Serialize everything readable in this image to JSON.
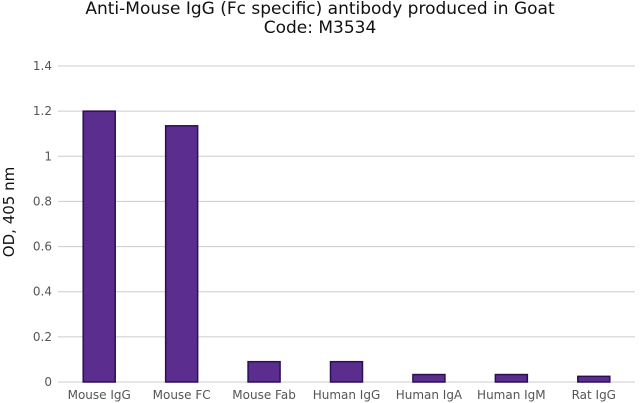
{
  "chart_data": {
    "type": "bar",
    "title": "Anti-Mouse IgG (Fc specific) antibody produced in Goat",
    "subtitle": "Code: M3534",
    "xlabel": "",
    "ylabel": "OD, 405 nm",
    "categories": [
      "Mouse IgG",
      "Mouse FC",
      "Mouse Fab",
      "Human IgG",
      "Human IgA",
      "Human IgM",
      "Rat IgG"
    ],
    "values": [
      1.2,
      1.135,
      0.09,
      0.09,
      0.033,
      0.033,
      0.025
    ],
    "ylim": [
      0,
      1.4
    ],
    "yticks": [
      "0",
      "0.2",
      "0.4",
      "0.6",
      "0.8",
      "1",
      "1.2",
      "1.4"
    ],
    "grid": true,
    "legend": "none",
    "colors": {
      "bar_fill": "#5b2d8e",
      "bar_stroke": "#2a1050",
      "grid": "#cccccc",
      "text": "#555555"
    }
  }
}
